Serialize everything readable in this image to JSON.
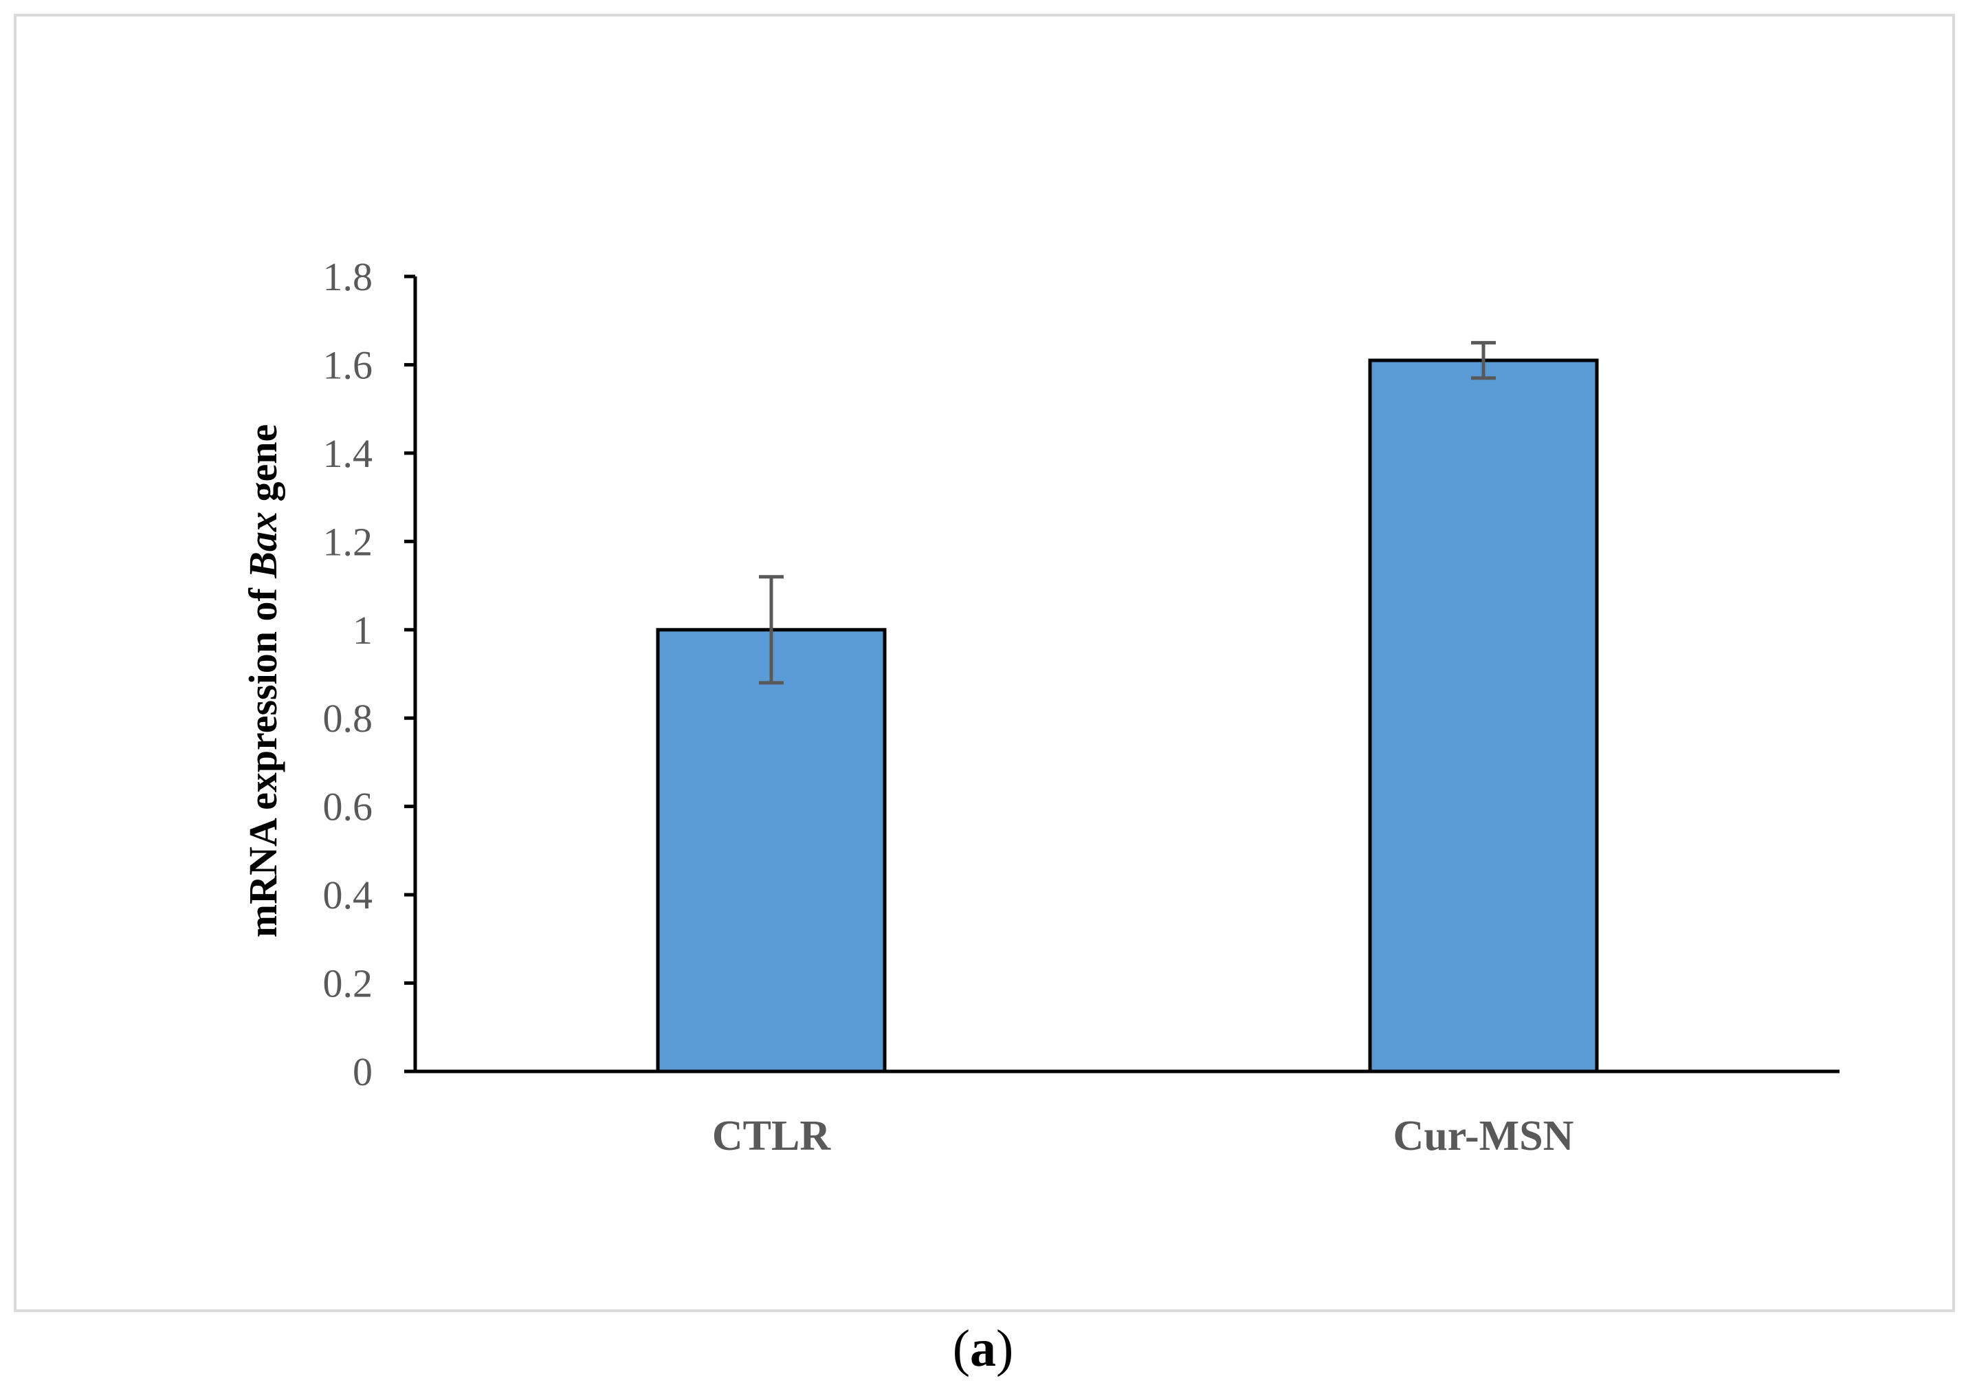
{
  "chart_data": {
    "type": "bar",
    "categories": [
      "CTLR",
      "Cur-MSN"
    ],
    "values": [
      1.0,
      1.61
    ],
    "errors": [
      0.12,
      0.04
    ],
    "title": "",
    "xlabel": "",
    "ylabel_prefix": "mRNA expression of ",
    "ylabel_gene": "Bax",
    "ylabel_suffix": " gene",
    "ylim": [
      0,
      1.8
    ],
    "ytick_step": 0.2,
    "ytick_labels": [
      "0",
      "0.2",
      "0.4",
      "0.6",
      "0.8",
      "1",
      "1.2",
      "1.4",
      "1.6",
      "1.8"
    ],
    "grid": false,
    "bar_color": "#5b9bd5",
    "bar_edge_color": "#000000",
    "error_color": "#595959",
    "axis_color": "#000000"
  },
  "caption": {
    "open": "(",
    "letter": "a",
    "close": ")"
  }
}
